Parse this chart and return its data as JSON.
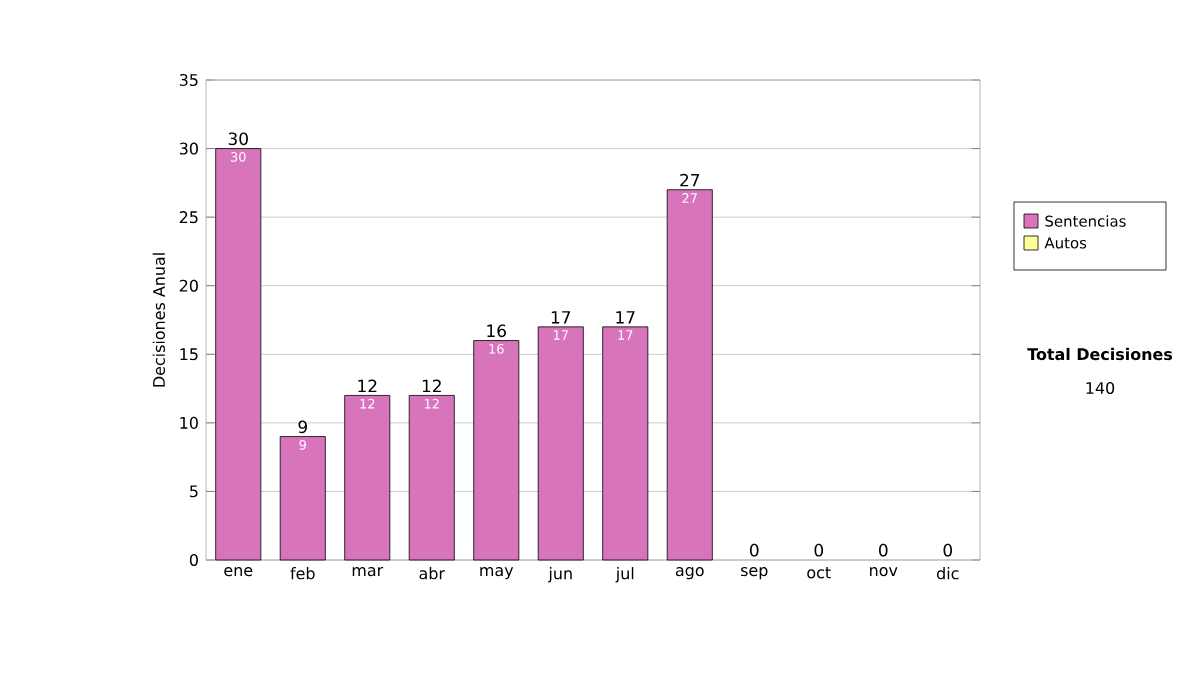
{
  "chart_data": {
    "type": "bar",
    "ylabel": "Decisiones Anual",
    "categories": [
      "ene",
      "feb",
      "mar",
      "abr",
      "may",
      "jun",
      "jul",
      "ago",
      "sep",
      "oct",
      "nov",
      "dic"
    ],
    "series": [
      {
        "name": "Sentencias",
        "color": "#d874bc",
        "values": [
          30,
          9,
          12,
          12,
          16,
          17,
          17,
          27,
          0,
          0,
          0,
          0
        ],
        "value_labels": [
          "30",
          "9",
          "12",
          "12",
          "16",
          "17",
          "17",
          "27",
          null,
          null,
          null,
          null
        ]
      },
      {
        "name": "Autos",
        "color": "#ffff99",
        "values": [
          0,
          0,
          0,
          0,
          0,
          0,
          0,
          0,
          0,
          0,
          0,
          0
        ]
      }
    ],
    "totals": [
      "30",
      "9",
      "12",
      "12",
      "16",
      "17",
      "17",
      "27",
      "0",
      "0",
      "0",
      "0"
    ],
    "ylim": [
      0,
      35
    ],
    "yticks": [
      0,
      5,
      10,
      15,
      20,
      25,
      30,
      35
    ],
    "grid": "y",
    "legend": "right",
    "annotations": [
      "Total Decisiones",
      "140"
    ]
  }
}
